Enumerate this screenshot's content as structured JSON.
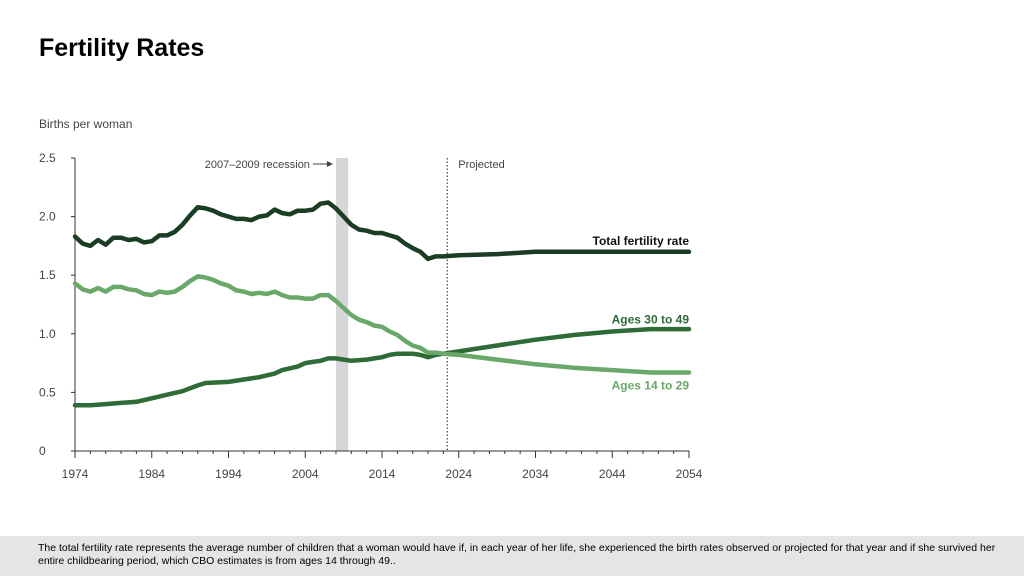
{
  "title": "Fertility Rates",
  "footnote": "The total fertility rate represents the average number of children that a woman would have if, in each year of her life, she experienced the birth rates observed or projected for that year and if she survived her entire childbearing period, which CBO estimates is from ages 14 through 49..",
  "colors": {
    "total": "#1a3d24",
    "ages30": "#2e6b36",
    "ages14": "#6aa86a",
    "recession": "#d6d6d6",
    "axis": "#333333",
    "text": "#444444"
  },
  "chart_data": {
    "type": "line",
    "ylabel": "Births per woman",
    "xlim": [
      1974,
      2054
    ],
    "ylim": [
      0,
      2.5
    ],
    "yticks": [
      "0",
      "0.5",
      "1.0",
      "1.5",
      "2.0",
      "2.5"
    ],
    "xticks": [
      "1974",
      "1984",
      "1994",
      "2004",
      "2014",
      "2024",
      "2034",
      "2044",
      "2054"
    ],
    "recession": {
      "label": "2007–2009 recession",
      "start": 2008,
      "end": 2009.6
    },
    "projected": {
      "label": "Projected",
      "start": 2022.5
    },
    "series": [
      {
        "name": "Total fertility rate",
        "key": "total",
        "points": [
          [
            1974,
            1.83
          ],
          [
            1975,
            1.77
          ],
          [
            1976,
            1.75
          ],
          [
            1977,
            1.8
          ],
          [
            1978,
            1.76
          ],
          [
            1979,
            1.82
          ],
          [
            1980,
            1.82
          ],
          [
            1981,
            1.8
          ],
          [
            1982,
            1.81
          ],
          [
            1983,
            1.78
          ],
          [
            1984,
            1.79
          ],
          [
            1985,
            1.84
          ],
          [
            1986,
            1.84
          ],
          [
            1987,
            1.87
          ],
          [
            1988,
            1.93
          ],
          [
            1989,
            2.01
          ],
          [
            1990,
            2.08
          ],
          [
            1991,
            2.07
          ],
          [
            1992,
            2.05
          ],
          [
            1993,
            2.02
          ],
          [
            1994,
            2.0
          ],
          [
            1995,
            1.98
          ],
          [
            1996,
            1.98
          ],
          [
            1997,
            1.97
          ],
          [
            1998,
            2.0
          ],
          [
            1999,
            2.01
          ],
          [
            2000,
            2.06
          ],
          [
            2001,
            2.03
          ],
          [
            2002,
            2.02
          ],
          [
            2003,
            2.05
          ],
          [
            2004,
            2.05
          ],
          [
            2005,
            2.06
          ],
          [
            2006,
            2.11
          ],
          [
            2007,
            2.12
          ],
          [
            2008,
            2.07
          ],
          [
            2009,
            2.0
          ],
          [
            2010,
            1.93
          ],
          [
            2011,
            1.89
          ],
          [
            2012,
            1.88
          ],
          [
            2013,
            1.86
          ],
          [
            2014,
            1.86
          ],
          [
            2015,
            1.84
          ],
          [
            2016,
            1.82
          ],
          [
            2017,
            1.77
          ],
          [
            2018,
            1.73
          ],
          [
            2019,
            1.7
          ],
          [
            2020,
            1.64
          ],
          [
            2021,
            1.66
          ],
          [
            2022,
            1.66
          ],
          [
            2024,
            1.67
          ],
          [
            2029,
            1.68
          ],
          [
            2034,
            1.7
          ],
          [
            2044,
            1.7
          ],
          [
            2054,
            1.7
          ]
        ],
        "label_y": 1.79
      },
      {
        "name": "Ages 30 to 49",
        "key": "ages30",
        "points": [
          [
            1974,
            0.39
          ],
          [
            1976,
            0.39
          ],
          [
            1978,
            0.4
          ],
          [
            1980,
            0.41
          ],
          [
            1982,
            0.42
          ],
          [
            1984,
            0.45
          ],
          [
            1986,
            0.48
          ],
          [
            1988,
            0.51
          ],
          [
            1990,
            0.56
          ],
          [
            1991,
            0.58
          ],
          [
            1994,
            0.59
          ],
          [
            1996,
            0.61
          ],
          [
            1998,
            0.63
          ],
          [
            2000,
            0.66
          ],
          [
            2001,
            0.69
          ],
          [
            2003,
            0.72
          ],
          [
            2004,
            0.75
          ],
          [
            2005,
            0.76
          ],
          [
            2006,
            0.77
          ],
          [
            2007,
            0.79
          ],
          [
            2008,
            0.79
          ],
          [
            2009,
            0.78
          ],
          [
            2010,
            0.77
          ],
          [
            2012,
            0.78
          ],
          [
            2013,
            0.79
          ],
          [
            2014,
            0.8
          ],
          [
            2015,
            0.82
          ],
          [
            2016,
            0.83
          ],
          [
            2017,
            0.83
          ],
          [
            2018,
            0.83
          ],
          [
            2019,
            0.82
          ],
          [
            2020,
            0.8
          ],
          [
            2021,
            0.82
          ],
          [
            2022,
            0.83
          ],
          [
            2024,
            0.85
          ],
          [
            2029,
            0.9
          ],
          [
            2034,
            0.95
          ],
          [
            2039,
            0.99
          ],
          [
            2044,
            1.02
          ],
          [
            2049,
            1.04
          ],
          [
            2054,
            1.04
          ]
        ],
        "label_y": 1.12
      },
      {
        "name": "Ages 14 to 29",
        "key": "ages14",
        "points": [
          [
            1974,
            1.43
          ],
          [
            1975,
            1.38
          ],
          [
            1976,
            1.36
          ],
          [
            1977,
            1.39
          ],
          [
            1978,
            1.36
          ],
          [
            1979,
            1.4
          ],
          [
            1980,
            1.4
          ],
          [
            1981,
            1.38
          ],
          [
            1982,
            1.37
          ],
          [
            1983,
            1.34
          ],
          [
            1984,
            1.33
          ],
          [
            1985,
            1.36
          ],
          [
            1986,
            1.35
          ],
          [
            1987,
            1.36
          ],
          [
            1988,
            1.4
          ],
          [
            1989,
            1.45
          ],
          [
            1990,
            1.49
          ],
          [
            1991,
            1.48
          ],
          [
            1992,
            1.46
          ],
          [
            1993,
            1.43
          ],
          [
            1994,
            1.41
          ],
          [
            1995,
            1.37
          ],
          [
            1996,
            1.36
          ],
          [
            1997,
            1.34
          ],
          [
            1998,
            1.35
          ],
          [
            1999,
            1.34
          ],
          [
            2000,
            1.36
          ],
          [
            2001,
            1.33
          ],
          [
            2002,
            1.31
          ],
          [
            2003,
            1.31
          ],
          [
            2004,
            1.3
          ],
          [
            2005,
            1.3
          ],
          [
            2006,
            1.33
          ],
          [
            2007,
            1.33
          ],
          [
            2008,
            1.28
          ],
          [
            2009,
            1.22
          ],
          [
            2010,
            1.16
          ],
          [
            2011,
            1.12
          ],
          [
            2012,
            1.1
          ],
          [
            2013,
            1.07
          ],
          [
            2014,
            1.06
          ],
          [
            2015,
            1.02
          ],
          [
            2016,
            0.99
          ],
          [
            2017,
            0.94
          ],
          [
            2018,
            0.9
          ],
          [
            2019,
            0.88
          ],
          [
            2020,
            0.84
          ],
          [
            2021,
            0.84
          ],
          [
            2022,
            0.83
          ],
          [
            2024,
            0.82
          ],
          [
            2029,
            0.78
          ],
          [
            2034,
            0.74
          ],
          [
            2039,
            0.71
          ],
          [
            2044,
            0.69
          ],
          [
            2049,
            0.67
          ],
          [
            2054,
            0.67
          ]
        ],
        "label_y": 0.56
      }
    ]
  }
}
